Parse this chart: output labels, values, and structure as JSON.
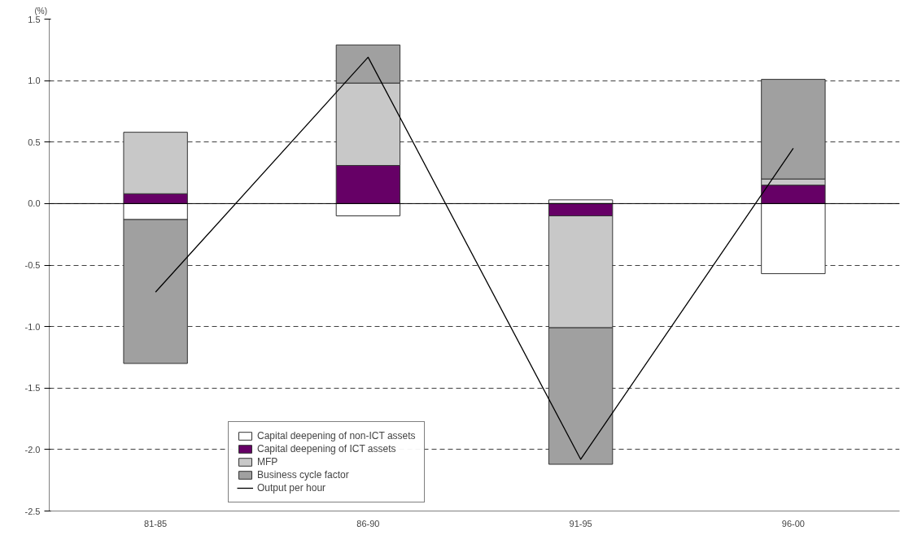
{
  "chart_data": {
    "type": "bar",
    "stacked": true,
    "ylabel": "(%)",
    "categories": [
      "81-85",
      "86-90",
      "91-95",
      "96-00"
    ],
    "series": [
      {
        "name": "Capital deepening of non-ICT assets",
        "color": "#ffffff",
        "values": [
          -0.13,
          -0.1,
          0.03,
          -0.57
        ]
      },
      {
        "name": "Capital deepening of ICT assets",
        "color": "#660066",
        "values": [
          0.08,
          0.31,
          -0.1,
          0.15
        ]
      },
      {
        "name": "MFP",
        "color": "#c8c8c8",
        "values": [
          0.5,
          0.67,
          -0.91,
          0.05
        ]
      },
      {
        "name": "Business cycle factor",
        "color": "#a0a0a0",
        "values": [
          -1.17,
          0.31,
          -1.11,
          0.81
        ]
      },
      {
        "name": "Output per hour",
        "type": "line",
        "color": "#000000",
        "values": [
          -0.72,
          1.19,
          -2.08,
          0.45
        ]
      }
    ],
    "ylim": [
      -2.5,
      1.5
    ],
    "yticks": [
      {
        "value": -2.5,
        "label": "-2.5"
      },
      {
        "value": -2,
        "label": "-2.0"
      },
      {
        "value": -1.5,
        "label": "-1.5"
      },
      {
        "value": -1,
        "label": "-1.0"
      },
      {
        "value": -0.5,
        "label": "-0.5"
      },
      {
        "value": 0,
        "label": "0.0"
      },
      {
        "value": 0.5,
        "label": "0.5"
      },
      {
        "value": 1,
        "label": "1.0"
      },
      {
        "value": 1.5,
        "label": "1.5"
      }
    ],
    "grid": "y",
    "legend": "bottom left",
    "line_style": "solid",
    "marker": "none"
  }
}
